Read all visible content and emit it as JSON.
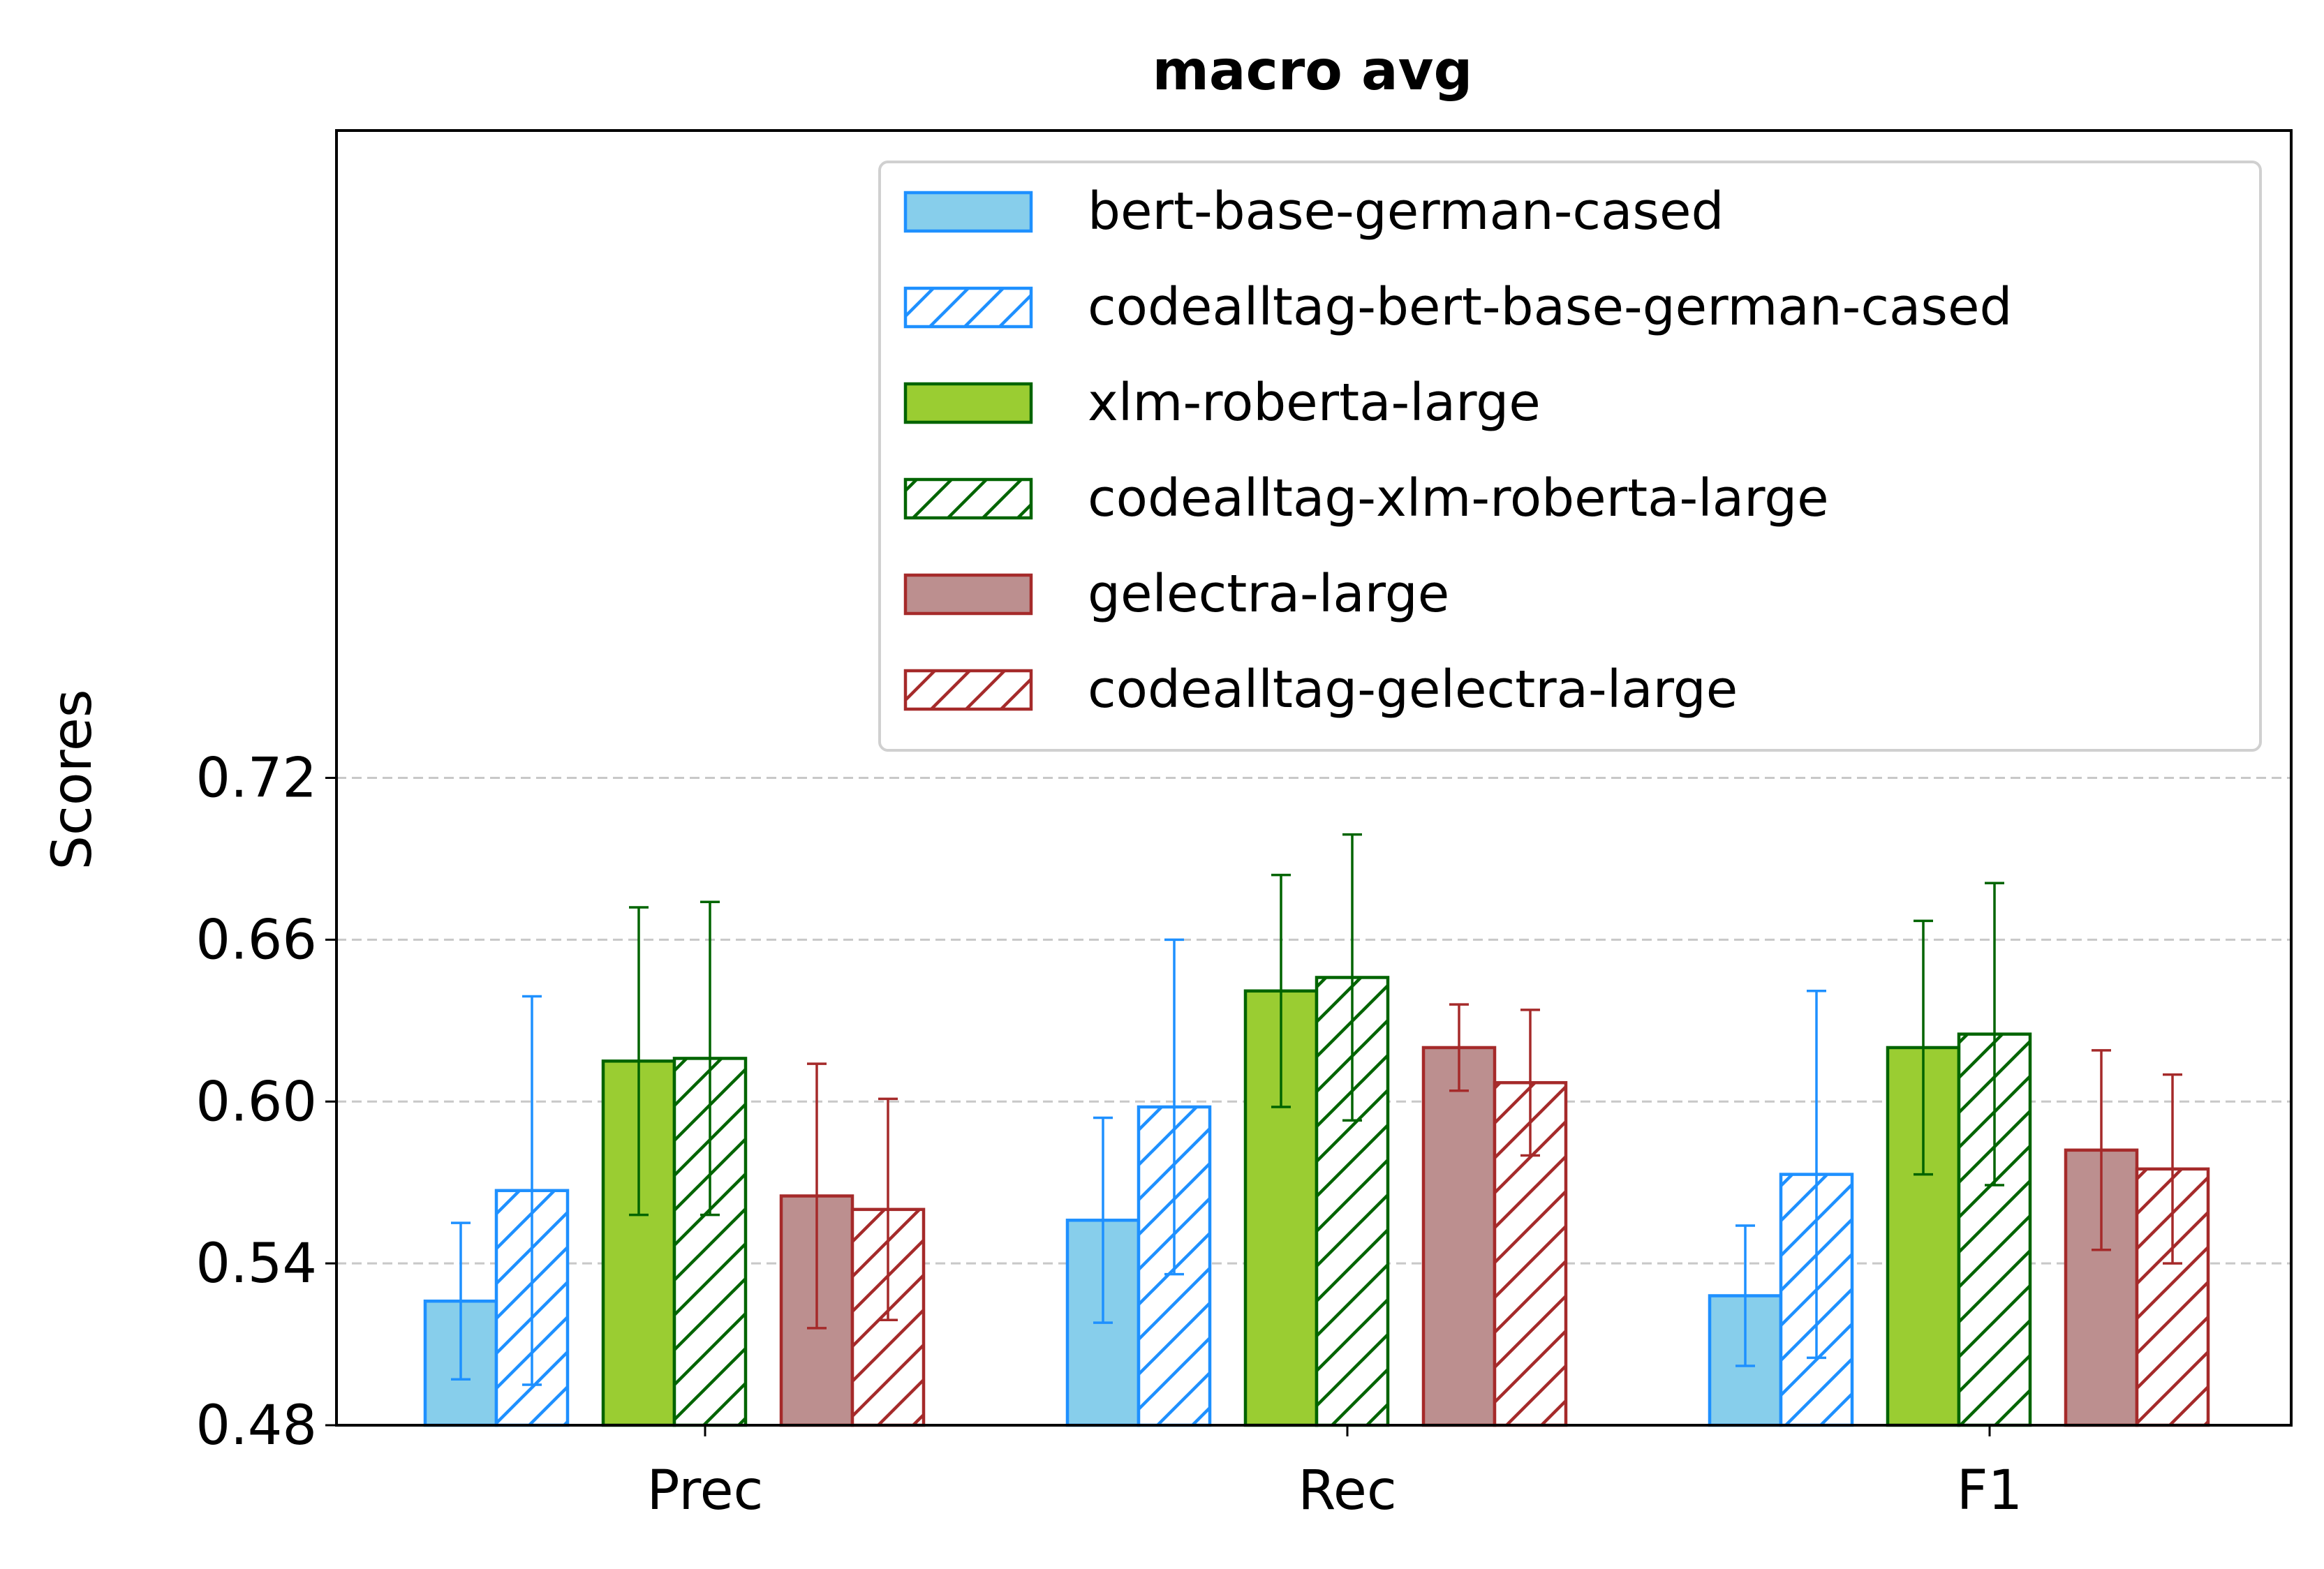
{
  "chart_data": {
    "type": "bar",
    "title": "macro avg",
    "xlabel": "",
    "ylabel": "Scores",
    "categories": [
      "Prec",
      "Rec",
      "F1"
    ],
    "ylim": [
      0.48,
      0.96
    ],
    "yticks": [
      "0.48",
      "0.54",
      "0.60",
      "0.66",
      "0.72"
    ],
    "grid": "horizontal dashed at y ticks",
    "legend_position": "top-right",
    "series": [
      {
        "name": "bert-base-german-cased",
        "values": [
          0.526,
          0.556,
          0.528
        ],
        "errors": [
          0.029,
          0.038,
          0.026
        ],
        "face": "#87ceeb",
        "edge": "#1e90ff",
        "hatch": false
      },
      {
        "name": "codealltag-bert-base-german-cased",
        "values": [
          0.567,
          0.598,
          0.573
        ],
        "errors": [
          0.072,
          0.062,
          0.068
        ],
        "face": "#ffffff",
        "edge": "#1e90ff",
        "hatch": true
      },
      {
        "name": "xlm-roberta-large",
        "values": [
          0.615,
          0.641,
          0.62
        ],
        "errors": [
          0.057,
          0.043,
          0.047
        ],
        "face": "#9acd32",
        "edge": "#006400",
        "hatch": false
      },
      {
        "name": "codealltag-xlm-roberta-large",
        "values": [
          0.616,
          0.646,
          0.625
        ],
        "errors": [
          0.058,
          0.053,
          0.056
        ],
        "face": "#ffffff",
        "edge": "#006400",
        "hatch": true
      },
      {
        "name": "gelectra-large",
        "values": [
          0.565,
          0.62,
          0.582
        ],
        "errors": [
          0.049,
          0.016,
          0.037
        ],
        "face": "#bc8f8f",
        "edge": "#a52a2a",
        "hatch": false
      },
      {
        "name": "codealltag-gelectra-large",
        "values": [
          0.56,
          0.607,
          0.575
        ],
        "errors": [
          0.041,
          0.027,
          0.035
        ],
        "face": "#ffffff",
        "edge": "#a52a2a",
        "hatch": true
      }
    ]
  }
}
